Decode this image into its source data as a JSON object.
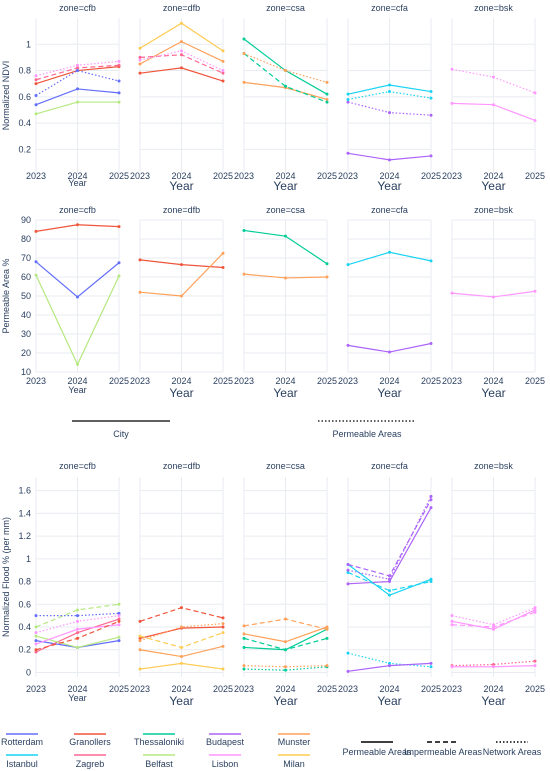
{
  "colors": {
    "Rotterdam": "#636efa",
    "Granollers": "#ef553b",
    "Thessaloniki": "#00cc96",
    "Budapest": "#ab63fa",
    "Munster": "#ffa15a",
    "Istanbul": "#19d3f3",
    "Zagreb": "#ff6692",
    "Belfast": "#b6e880",
    "Lisbon": "#ff97ff",
    "Milan": "#fecb52"
  },
  "city_legend": {
    "row1": [
      "Rotterdam",
      "Granollers",
      "Thessaloniki",
      "Budapest",
      "Munster"
    ],
    "row2": [
      "Istanbul",
      "Zagreb",
      "Belfast",
      "Lisbon",
      "Milan"
    ]
  },
  "style_legend": [
    {
      "label": "Permeable Areas",
      "dash": "solid"
    },
    {
      "label": "Impermeable Areas",
      "dash": "dash"
    },
    {
      "label": "Network Areas",
      "dash": "dot"
    }
  ],
  "mid_legend": {
    "left": "City",
    "right": "Permeable Areas"
  },
  "chart_data": [
    {
      "type": "line",
      "ylabel": "Normalized NDVI",
      "xlabel": "Year",
      "ylim": [
        0.02,
        1.2
      ],
      "yticks": [
        0.2,
        0.4,
        0.6,
        0.8,
        1
      ],
      "x": [
        "2023",
        "2024",
        "2025"
      ],
      "panels": [
        {
          "title": "zone=cfb",
          "series": [
            {
              "name": "Rotterdam",
              "dash": "solid",
              "values": [
                0.54,
                0.66,
                0.63
              ]
            },
            {
              "name": "Granollers",
              "dash": "solid",
              "values": [
                0.7,
                0.8,
                0.83
              ]
            },
            {
              "name": "Belfast",
              "dash": "solid",
              "values": [
                0.47,
                0.56,
                0.56
              ]
            },
            {
              "name": "Zagreb",
              "dash": "dash",
              "values": [
                0.73,
                0.82,
                0.84
              ]
            },
            {
              "name": "Lisbon",
              "dash": "dot",
              "values": [
                0.76,
                0.84,
                0.87
              ]
            },
            {
              "name": "Rotterdam",
              "dash": "dot",
              "values": [
                0.61,
                0.8,
                0.72
              ]
            }
          ]
        },
        {
          "title": "zone=dfb",
          "series": [
            {
              "name": "Granollers",
              "dash": "solid",
              "values": [
                0.78,
                0.82,
                0.72
              ]
            },
            {
              "name": "Munster",
              "dash": "solid",
              "values": [
                0.85,
                1.02,
                0.87
              ]
            },
            {
              "name": "Milan",
              "dash": "solid",
              "values": [
                0.97,
                1.16,
                0.95
              ]
            },
            {
              "name": "Zagreb",
              "dash": "dash",
              "values": [
                0.9,
                0.92,
                0.78
              ]
            },
            {
              "name": "Lisbon",
              "dash": "dot",
              "values": [
                0.88,
                0.95,
                0.8
              ]
            }
          ]
        },
        {
          "title": "zone=csa",
          "series": [
            {
              "name": "Thessaloniki",
              "dash": "solid",
              "values": [
                1.04,
                0.8,
                0.62
              ]
            },
            {
              "name": "Munster",
              "dash": "solid",
              "values": [
                0.71,
                0.67,
                0.58
              ]
            },
            {
              "name": "Thessaloniki",
              "dash": "dash",
              "values": [
                0.93,
                0.68,
                0.56
              ]
            },
            {
              "name": "Munster",
              "dash": "dot",
              "values": [
                0.93,
                0.8,
                0.71
              ]
            }
          ]
        },
        {
          "title": "zone=cfa",
          "series": [
            {
              "name": "Istanbul",
              "dash": "solid",
              "values": [
                0.62,
                0.69,
                0.64
              ]
            },
            {
              "name": "Budapest",
              "dash": "solid",
              "values": [
                0.17,
                0.12,
                0.15
              ]
            },
            {
              "name": "Budapest",
              "dash": "dot",
              "values": [
                0.56,
                0.48,
                0.46
              ]
            },
            {
              "name": "Istanbul",
              "dash": "dot",
              "values": [
                0.58,
                0.64,
                0.59
              ]
            }
          ]
        },
        {
          "title": "zone=bsk",
          "series": [
            {
              "name": "Lisbon",
              "dash": "solid",
              "values": [
                0.55,
                0.54,
                0.42
              ]
            },
            {
              "name": "Lisbon",
              "dash": "dot",
              "values": [
                0.81,
                0.75,
                0.63
              ]
            }
          ]
        }
      ]
    },
    {
      "type": "line",
      "ylabel": "Permeable Area %",
      "xlabel": "Year",
      "ylim": [
        10,
        90
      ],
      "yticks": [
        10,
        20,
        30,
        40,
        50,
        60,
        70,
        80,
        90
      ],
      "x": [
        "2023",
        "2024",
        "2025"
      ],
      "panels": [
        {
          "title": "zone=cfb",
          "series": [
            {
              "name": "Granollers",
              "dash": "solid",
              "values": [
                84,
                87.5,
                86.5
              ]
            },
            {
              "name": "Rotterdam",
              "dash": "solid",
              "values": [
                68,
                49.5,
                67.5
              ]
            },
            {
              "name": "Belfast",
              "dash": "solid",
              "values": [
                61,
                14,
                60.5
              ]
            }
          ]
        },
        {
          "title": "zone=dfb",
          "series": [
            {
              "name": "Granollers",
              "dash": "solid",
              "values": [
                69,
                66.5,
                65
              ]
            },
            {
              "name": "Munster",
              "dash": "solid",
              "values": [
                52,
                50,
                72.5
              ]
            }
          ]
        },
        {
          "title": "zone=csa",
          "series": [
            {
              "name": "Thessaloniki",
              "dash": "solid",
              "values": [
                84.5,
                81.5,
                67
              ]
            },
            {
              "name": "Munster",
              "dash": "solid",
              "values": [
                61.5,
                59.5,
                60
              ]
            }
          ]
        },
        {
          "title": "zone=cfa",
          "series": [
            {
              "name": "Istanbul",
              "dash": "solid",
              "values": [
                66.5,
                73,
                68.5
              ]
            },
            {
              "name": "Budapest",
              "dash": "solid",
              "values": [
                24,
                20.5,
                25
              ]
            }
          ]
        },
        {
          "title": "zone=bsk",
          "series": [
            {
              "name": "Lisbon",
              "dash": "solid",
              "values": [
                51.5,
                49.5,
                52.5
              ]
            }
          ]
        }
      ]
    },
    {
      "type": "line",
      "ylabel": "Normalized Flood % (per mm)",
      "xlabel": "Year",
      "ylim": [
        -0.04,
        1.72
      ],
      "yticks": [
        0,
        0.2,
        0.4,
        0.6,
        0.8,
        1,
        1.2,
        1.4,
        1.6
      ],
      "x": [
        "2023",
        "2024",
        "2025"
      ],
      "panels": [
        {
          "title": "zone=cfb",
          "series": [
            {
              "name": "Rotterdam",
              "dash": "solid",
              "values": [
                0.28,
                0.22,
                0.28
              ]
            },
            {
              "name": "Zagreb",
              "dash": "solid",
              "values": [
                0.18,
                0.35,
                0.47
              ]
            },
            {
              "name": "Belfast",
              "dash": "solid",
              "values": [
                0.32,
                0.22,
                0.31
              ]
            },
            {
              "name": "Lisbon",
              "dash": "solid",
              "values": [
                0.25,
                0.38,
                0.42
              ]
            },
            {
              "name": "Granollers",
              "dash": "dash",
              "values": [
                0.2,
                0.3,
                0.45
              ]
            },
            {
              "name": "Belfast",
              "dash": "dash",
              "values": [
                0.4,
                0.55,
                0.6
              ]
            },
            {
              "name": "Rotterdam",
              "dash": "dot",
              "values": [
                0.5,
                0.5,
                0.52
              ]
            },
            {
              "name": "Lisbon",
              "dash": "dot",
              "values": [
                0.35,
                0.45,
                0.5
              ]
            }
          ]
        },
        {
          "title": "zone=dfb",
          "series": [
            {
              "name": "Granollers",
              "dash": "solid",
              "values": [
                0.3,
                0.39,
                0.4
              ]
            },
            {
              "name": "Munster",
              "dash": "solid",
              "values": [
                0.2,
                0.14,
                0.23
              ]
            },
            {
              "name": "Granollers",
              "dash": "dash",
              "values": [
                0.45,
                0.57,
                0.48
              ]
            },
            {
              "name": "Milan",
              "dash": "dash",
              "values": [
                0.32,
                0.22,
                0.35
              ]
            },
            {
              "name": "Munster",
              "dash": "dot",
              "values": [
                0.28,
                0.4,
                0.43
              ]
            },
            {
              "name": "Milan",
              "dash": "solid",
              "values": [
                0.03,
                0.08,
                0.03
              ]
            }
          ]
        },
        {
          "title": "zone=csa",
          "series": [
            {
              "name": "Thessaloniki",
              "dash": "solid",
              "values": [
                0.22,
                0.2,
                0.38
              ]
            },
            {
              "name": "Munster",
              "dash": "solid",
              "values": [
                0.34,
                0.27,
                0.4
              ]
            },
            {
              "name": "Munster",
              "dash": "dash",
              "values": [
                0.41,
                0.47,
                0.38
              ]
            },
            {
              "name": "Thessaloniki",
              "dash": "dash",
              "values": [
                0.3,
                0.2,
                0.3
              ]
            },
            {
              "name": "Thessaloniki",
              "dash": "dot",
              "values": [
                0.03,
                0.02,
                0.05
              ]
            },
            {
              "name": "Munster",
              "dash": "dot",
              "values": [
                0.06,
                0.05,
                0.06
              ]
            }
          ]
        },
        {
          "title": "zone=cfa",
          "series": [
            {
              "name": "Istanbul",
              "dash": "solid",
              "values": [
                0.95,
                0.68,
                0.82
              ]
            },
            {
              "name": "Budapest",
              "dash": "solid",
              "values": [
                0.78,
                0.8,
                1.45
              ]
            },
            {
              "name": "Budapest",
              "dash": "dash",
              "values": [
                0.95,
                0.85,
                1.52
              ]
            },
            {
              "name": "Istanbul",
              "dash": "dash",
              "values": [
                0.88,
                0.72,
                0.8
              ]
            },
            {
              "name": "Budapest",
              "dash": "dot",
              "values": [
                0.9,
                0.82,
                1.55
              ]
            },
            {
              "name": "Istanbul",
              "dash": "dot",
              "values": [
                0.17,
                0.08,
                0.05
              ]
            },
            {
              "name": "Budapest",
              "dash": "solid",
              "values": [
                0.01,
                0.06,
                0.08
              ]
            }
          ]
        },
        {
          "title": "zone=bsk",
          "series": [
            {
              "name": "Lisbon",
              "dash": "solid",
              "values": [
                0.45,
                0.38,
                0.55
              ]
            },
            {
              "name": "Lisbon",
              "dash": "dash",
              "values": [
                0.42,
                0.4,
                0.53
              ]
            },
            {
              "name": "Lisbon",
              "dash": "dot",
              "values": [
                0.5,
                0.42,
                0.57
              ]
            },
            {
              "name": "Zagreb",
              "dash": "dot",
              "values": [
                0.06,
                0.07,
                0.1
              ]
            },
            {
              "name": "Lisbon",
              "dash": "solid",
              "values": [
                0.05,
                0.05,
                0.06
              ]
            }
          ]
        }
      ]
    }
  ]
}
